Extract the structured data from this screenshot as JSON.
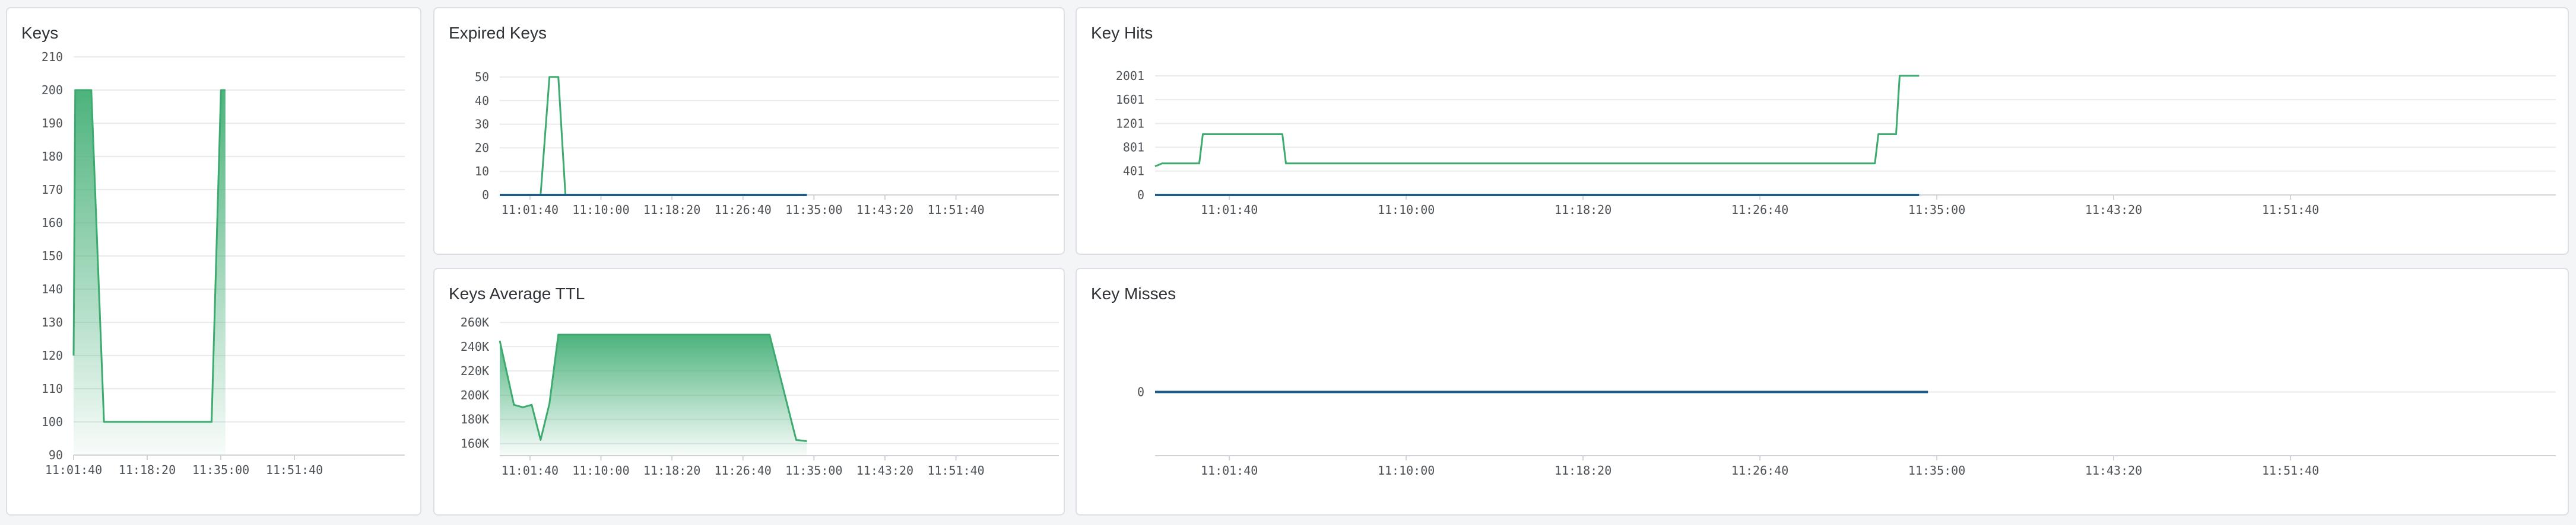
{
  "theme": {
    "line": "#3daa6f",
    "fill": "#4db37d",
    "grid": "#e8eaed",
    "axis": "#1f5c8a",
    "axisGray": "#cfd3d8"
  },
  "panels": {
    "keys": {
      "title": "Keys"
    },
    "expired": {
      "title": "Expired Keys"
    },
    "hits": {
      "title": "Key Hits"
    },
    "ttl": {
      "title": "Keys Average TTL"
    },
    "misses": {
      "title": "Key Misses"
    }
  },
  "chart_data": [
    {
      "id": "keys",
      "type": "area",
      "title": "Keys",
      "xlim": [
        0,
        60
      ],
      "ylim": [
        90,
        210
      ],
      "y_ticks": [
        90,
        100,
        110,
        120,
        130,
        140,
        150,
        160,
        170,
        180,
        190,
        200,
        210
      ],
      "y_tick_labels": [
        "90",
        "100",
        "110",
        "120",
        "130",
        "140",
        "150",
        "160",
        "170",
        "180",
        "190",
        "200",
        "210"
      ],
      "x_ticks": [
        0,
        13.33,
        26.67,
        40
      ],
      "x_tick_labels": [
        "11:01:40",
        "11:18:20",
        "11:35:00",
        "11:51:40"
      ],
      "series": [
        {
          "name": "keys",
          "x": [
            0,
            0.3,
            3.2,
            5.5,
            25,
            26.7,
            27.5
          ],
          "y": [
            120,
            200,
            200,
            100,
            100,
            200,
            200
          ]
        }
      ]
    },
    {
      "id": "expired",
      "type": "line",
      "title": "Expired Keys",
      "xlim": [
        -0.85,
        14.9
      ],
      "ylim": [
        0,
        53
      ],
      "y_ticks": [
        0,
        10,
        20,
        30,
        40,
        50
      ],
      "y_tick_labels": [
        "0",
        "10",
        "20",
        "30",
        "40",
        "50"
      ],
      "x_ticks": [
        0,
        2,
        4,
        6,
        8,
        10,
        12
      ],
      "x_tick_labels": [
        "11:01:40",
        "11:10:00",
        "11:18:20",
        "11:26:40",
        "11:35:00",
        "11:43:20",
        "11:51:40"
      ],
      "series": [
        {
          "name": "expired",
          "x": [
            -0.85,
            0.3,
            0.55,
            0.8,
            1.0,
            7.8
          ],
          "y": [
            0,
            0,
            50,
            50,
            0,
            0
          ]
        },
        {
          "name": "baseline",
          "x": [
            -0.85,
            7.8
          ],
          "y": [
            0,
            0
          ]
        }
      ]
    },
    {
      "id": "hits",
      "type": "line",
      "title": "Key Hits",
      "xlim": [
        -0.42,
        7.5
      ],
      "ylim": [
        0,
        2100
      ],
      "y_ticks": [
        0,
        401,
        801,
        1201,
        1601,
        2001
      ],
      "y_tick_labels": [
        "0",
        "401",
        "801",
        "1201",
        "1601",
        "2001"
      ],
      "x_ticks": [
        0,
        1,
        2,
        3,
        4,
        5,
        6
      ],
      "x_tick_labels": [
        "11:01:40",
        "11:10:00",
        "11:18:20",
        "11:26:40",
        "11:35:00",
        "11:43:20",
        "11:51:40"
      ],
      "series": [
        {
          "name": "hits",
          "x": [
            -0.42,
            -0.38,
            -0.17,
            -0.15,
            0.3,
            0.32,
            3.65,
            3.67,
            3.77,
            3.79,
            3.9
          ],
          "y": [
            480,
            530,
            530,
            1020,
            1020,
            530,
            530,
            1020,
            1020,
            2001,
            2001
          ]
        },
        {
          "name": "baseline",
          "x": [
            -0.42,
            3.9
          ],
          "y": [
            0,
            0
          ]
        }
      ]
    },
    {
      "id": "ttl",
      "type": "area",
      "title": "Keys Average TTL",
      "xlim": [
        -0.85,
        14.9
      ],
      "ylim": [
        150000,
        265000
      ],
      "y_ticks": [
        160000,
        180000,
        200000,
        220000,
        240000,
        260000
      ],
      "y_tick_labels": [
        "160K",
        "180K",
        "200K",
        "220K",
        "240K",
        "260K"
      ],
      "x_ticks": [
        0,
        2,
        4,
        6,
        8,
        10,
        12
      ],
      "x_tick_labels": [
        "11:01:40",
        "11:10:00",
        "11:18:20",
        "11:26:40",
        "11:35:00",
        "11:43:20",
        "11:51:40"
      ],
      "series": [
        {
          "name": "ttl",
          "x": [
            -0.85,
            -0.45,
            -0.2,
            0.05,
            0.3,
            0.55,
            0.8,
            6.75,
            7.5,
            7.8
          ],
          "y": [
            245000,
            192000,
            190000,
            192000,
            163000,
            193000,
            250000,
            250000,
            163000,
            162000
          ]
        }
      ]
    },
    {
      "id": "misses",
      "type": "line",
      "title": "Key Misses",
      "xlim": [
        -0.42,
        7.5
      ],
      "ylim": [
        -1,
        1
      ],
      "y_ticks": [
        0
      ],
      "y_tick_labels": [
        "0"
      ],
      "x_ticks": [
        0,
        1,
        2,
        3,
        4,
        5,
        6
      ],
      "x_tick_labels": [
        "11:01:40",
        "11:10:00",
        "11:18:20",
        "11:26:40",
        "11:35:00",
        "11:43:20",
        "11:51:40"
      ],
      "series": [
        {
          "name": "misses",
          "x": [
            -0.42,
            3.95
          ],
          "y": [
            0,
            0
          ]
        }
      ]
    }
  ]
}
